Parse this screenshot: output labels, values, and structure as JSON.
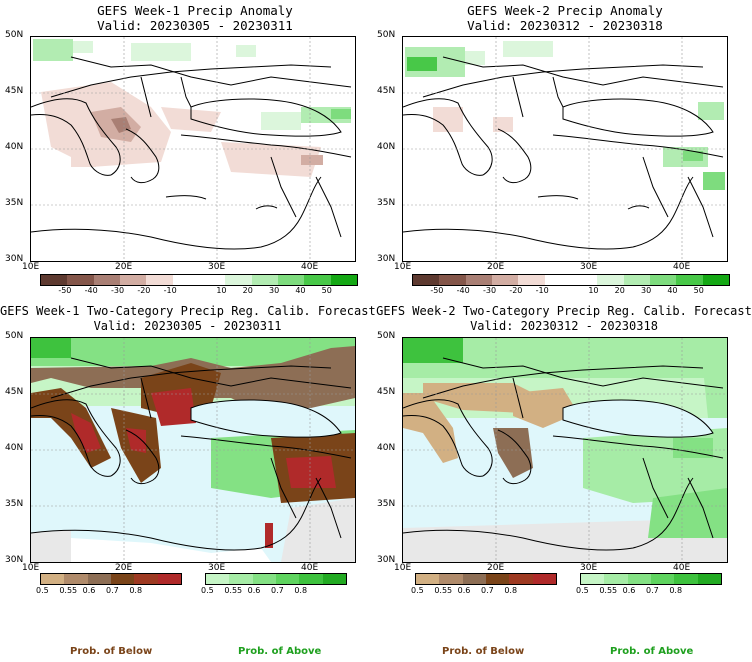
{
  "panels": [
    {
      "title": "GEFS Week-1 Precip Anomaly",
      "valid": "Valid: 20230305 - 20230311"
    },
    {
      "title": "GEFS Week-2 Precip Anomaly",
      "valid": "Valid: 20230312 - 20230318"
    },
    {
      "title": "GEFS Week-1 Two-Category Precip Reg. Calib. Forecast",
      "valid": "Valid: 20230305 - 20230311"
    },
    {
      "title": "GEFS Week-2 Two-Category Precip Reg. Calib. Forecast",
      "valid": "Valid: 20230312 - 20230318"
    }
  ],
  "lat_labels": [
    "50N",
    "45N",
    "40N",
    "35N",
    "30N"
  ],
  "lon_labels": [
    "10E",
    "20E",
    "30E",
    "40E"
  ],
  "anomaly_colorbar": {
    "labels": [
      "-50",
      "-40",
      "-30",
      "-20",
      "-10",
      "10",
      "20",
      "30",
      "40",
      "50"
    ],
    "colors": [
      "#5e3a30",
      "#84564a",
      "#a97f74",
      "#d2ada3",
      "#f2dcd6",
      "#ffffff",
      "#ffffff",
      "#dcf6dc",
      "#b2ecb2",
      "#7edc7e",
      "#48c848",
      "#14a814"
    ]
  },
  "below_colorbar": {
    "labels": [
      "0.5",
      "0.55",
      "0.6",
      "0.7",
      "0.8"
    ],
    "colors": [
      "#d2b083",
      "#b08b6b",
      "#8d6e55",
      "#7a4419",
      "#9e3a22",
      "#b02a2a"
    ]
  },
  "above_colorbar": {
    "labels": [
      "0.5",
      "0.55",
      "0.6",
      "0.7",
      "0.8"
    ],
    "colors": [
      "#c6f5c6",
      "#a6eca6",
      "#84e184",
      "#5fd45f",
      "#3ec23e",
      "#22aa22"
    ]
  },
  "bottom": {
    "below_1": "Prob. of Below",
    "above_1": "Prob. of Above",
    "below_2": "Prob. of Below",
    "above_2": "Prob. of Above"
  },
  "colors": {
    "sea": "#dff7fb",
    "land_grey": "#e8e8e8",
    "below_text": "#7a4419",
    "above_text": "#1fa01f"
  }
}
